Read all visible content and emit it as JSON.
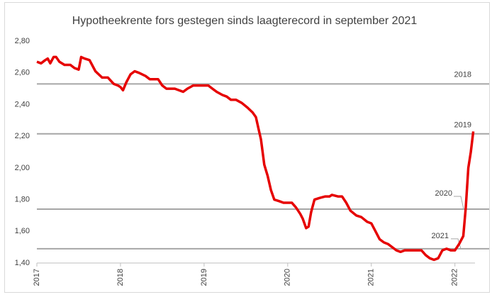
{
  "chart_data": {
    "type": "line",
    "title": "Hypotheekrente fors gestegen sinds laagterecord in september 2021",
    "x": [
      2017.0,
      2017.05,
      2017.1,
      2017.13,
      2017.16,
      2017.2,
      2017.23,
      2017.27,
      2017.33,
      2017.4,
      2017.45,
      2017.5,
      2017.53,
      2017.57,
      2017.63,
      2017.7,
      2017.78,
      2017.85,
      2017.92,
      2017.97,
      2018.0,
      2018.03,
      2018.07,
      2018.12,
      2018.17,
      2018.22,
      2018.3,
      2018.35,
      2018.45,
      2018.5,
      2018.55,
      2018.65,
      2018.75,
      2018.8,
      2018.87,
      2019.0,
      2019.05,
      2019.1,
      2019.15,
      2019.22,
      2019.27,
      2019.32,
      2019.38,
      2019.45,
      2019.52,
      2019.58,
      2019.62,
      2019.65,
      2019.68,
      2019.72,
      2019.76,
      2019.8,
      2019.84,
      2019.9,
      2019.95,
      2020.05,
      2020.1,
      2020.15,
      2020.18,
      2020.22,
      2020.25,
      2020.28,
      2020.32,
      2020.38,
      2020.45,
      2020.5,
      2020.53,
      2020.6,
      2020.65,
      2020.7,
      2020.75,
      2020.82,
      2020.88,
      2020.95,
      2021.0,
      2021.05,
      2021.1,
      2021.15,
      2021.2,
      2021.25,
      2021.3,
      2021.35,
      2021.4,
      2021.5,
      2021.6,
      2021.65,
      2021.7,
      2021.75,
      2021.8,
      2021.85,
      2021.9,
      2021.95,
      2022.0,
      2022.05,
      2022.1,
      2022.13,
      2022.16,
      2022.19,
      2022.22
    ],
    "series": [
      {
        "color": "#e60000",
        "values": [
          2.67,
          2.66,
          2.68,
          2.69,
          2.66,
          2.7,
          2.7,
          2.67,
          2.65,
          2.65,
          2.63,
          2.62,
          2.7,
          2.69,
          2.68,
          2.61,
          2.57,
          2.57,
          2.53,
          2.52,
          2.51,
          2.49,
          2.54,
          2.59,
          2.61,
          2.6,
          2.58,
          2.56,
          2.56,
          2.52,
          2.5,
          2.5,
          2.48,
          2.5,
          2.52,
          2.52,
          2.52,
          2.5,
          2.48,
          2.46,
          2.45,
          2.43,
          2.43,
          2.41,
          2.38,
          2.35,
          2.32,
          2.25,
          2.18,
          2.02,
          1.95,
          1.86,
          1.8,
          1.79,
          1.78,
          1.78,
          1.75,
          1.71,
          1.68,
          1.62,
          1.63,
          1.72,
          1.8,
          1.81,
          1.82,
          1.82,
          1.83,
          1.82,
          1.82,
          1.78,
          1.73,
          1.7,
          1.69,
          1.66,
          1.65,
          1.6,
          1.55,
          1.53,
          1.52,
          1.5,
          1.48,
          1.47,
          1.48,
          1.48,
          1.48,
          1.45,
          1.43,
          1.42,
          1.43,
          1.48,
          1.49,
          1.48,
          1.48,
          1.52,
          1.57,
          1.75,
          2.0,
          2.1,
          2.23
        ]
      }
    ],
    "xlim": [
      2017,
      2022.24
    ],
    "xticks": [
      2017,
      2018,
      2019,
      2020,
      2021,
      2022
    ],
    "ylim": [
      1.4,
      2.8
    ],
    "yticks": [
      {
        "value": 1.4,
        "label": "1,40"
      },
      {
        "value": 1.6,
        "label": "1,60"
      },
      {
        "value": 1.8,
        "label": "1,80"
      },
      {
        "value": 2.0,
        "label": "2,00"
      },
      {
        "value": 2.2,
        "label": "2,20"
      },
      {
        "value": 2.4,
        "label": "2,40"
      },
      {
        "value": 2.6,
        "label": "2,60"
      },
      {
        "value": 2.8,
        "label": "2,80"
      }
    ],
    "reference_lines": [
      {
        "label": "2018",
        "value": 2.53
      },
      {
        "label": "2019",
        "value": 2.215
      },
      {
        "label": "2020",
        "value": 1.74
      },
      {
        "label": "2021",
        "value": 1.49
      }
    ],
    "reference_color": "#a6a6a6"
  }
}
